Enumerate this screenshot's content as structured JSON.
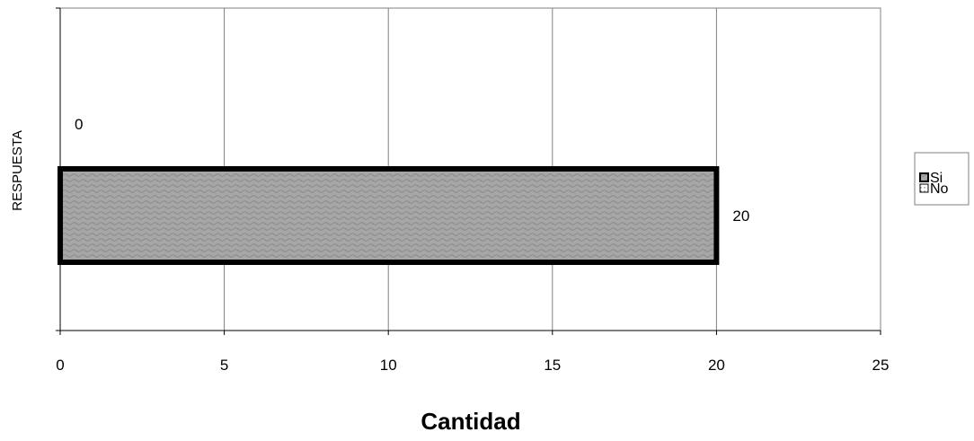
{
  "chart_data": {
    "type": "bar",
    "orientation": "horizontal",
    "xlabel": "Cantidad",
    "ylabel": "RESPUESTA",
    "xlim": [
      0,
      25
    ],
    "xticks": [
      0,
      5,
      10,
      15,
      20,
      25
    ],
    "grid": true,
    "legend_position": "right",
    "series": [
      {
        "name": "Si",
        "value": 20,
        "label": "20",
        "fill": "#a6a6a6",
        "border": "#000000",
        "pattern": "wave"
      },
      {
        "name": "No",
        "value": 0,
        "label": "0",
        "fill": "#ffffff",
        "border": "#000000",
        "pattern": "dots"
      }
    ]
  }
}
